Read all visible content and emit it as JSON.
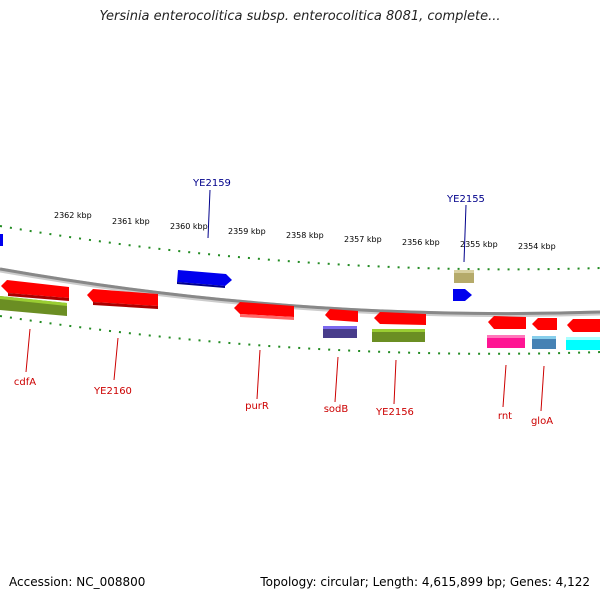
{
  "title": "Yersinia enterocolitica subsp. enterocolitica 8081, complete...",
  "footer": {
    "accession": "Accession: NC_008800",
    "summary": "Topology: circular; Length: 4,615,899 bp; Genes: 4,122"
  },
  "colors": {
    "ruler_tick": "#228b22",
    "backbone": "#888888",
    "label_top": "#00008b",
    "label_bottom": "#cc0000"
  },
  "ruler_labels": [
    "2362 kbp",
    "2361 kbp",
    "2360 kbp",
    "2359 kbp",
    "2358 kbp",
    "2357 kbp",
    "2356 kbp",
    "2355 kbp",
    "2354 kbp"
  ],
  "top_labels": [
    "YE2159",
    "YE2155"
  ],
  "bottom_labels": [
    "cdfA",
    "YE2160",
    "purR",
    "sodB",
    "YE2156",
    "rnt",
    "gloA"
  ],
  "feature_colors": [
    "#ff0000",
    "#0000ee",
    "#6b8e23",
    "#b5aa6a",
    "#483d8b",
    "#ff1493",
    "#4682b4",
    "#00ffff"
  ]
}
